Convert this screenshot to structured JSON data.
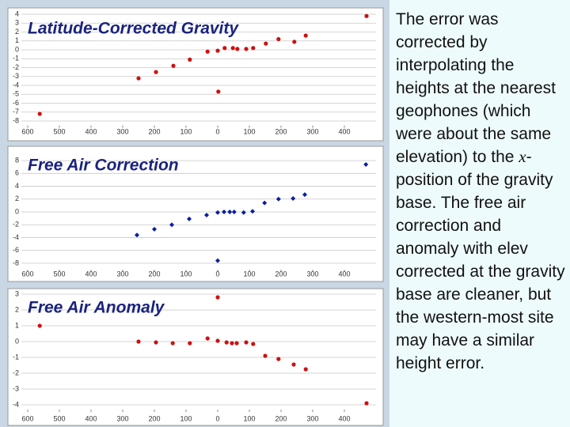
{
  "chart_data": [
    {
      "type": "scatter",
      "title": "Latitude-Corrected Gravity",
      "color": "#cc1111",
      "marker": "circle",
      "grid": true,
      "x": [
        562,
        250,
        195,
        140,
        88,
        32,
        0,
        -2,
        -22,
        -48,
        -62,
        -90,
        -112,
        -152,
        -192,
        -242,
        -278,
        -470
      ],
      "values": [
        -7.2,
        -3.2,
        -2.5,
        -1.8,
        -1.1,
        -0.2,
        -0.1,
        -4.7,
        0.2,
        0.2,
        0.1,
        0.1,
        0.2,
        0.7,
        1.2,
        0.9,
        1.6,
        3.8
      ],
      "xlim": [
        650,
        -500
      ],
      "ylim": [
        -8.5,
        4.5
      ],
      "xticks": [
        600,
        500,
        400,
        300,
        200,
        100,
        0,
        {
          "value": -100,
          "label": "100"
        },
        {
          "value": -200,
          "label": "200"
        },
        {
          "value": -300,
          "label": "300"
        },
        {
          "value": -400,
          "label": "400"
        }
      ],
      "yticks": [
        4,
        3,
        2,
        1,
        0,
        -1,
        -2,
        -3,
        -4,
        -5,
        -6,
        -7,
        -8
      ]
    },
    {
      "type": "scatter",
      "title": "Free Air Correction",
      "color": "#0a1fa0",
      "marker": "diamond",
      "grid": true,
      "x": [
        255,
        200,
        145,
        90,
        35,
        0,
        -20,
        -38,
        -52,
        -82,
        -110,
        -148,
        -192,
        -238,
        -275,
        0,
        -468
      ],
      "values": [
        -3.6,
        -2.7,
        -2.0,
        -1.1,
        -0.5,
        -0.1,
        0,
        0,
        0,
        -0.1,
        0.1,
        1.4,
        2.0,
        2.1,
        2.7,
        -7.6,
        7.4
      ],
      "xlim": [
        650,
        -500
      ],
      "ylim": [
        -9,
        9
      ],
      "xticks": [
        600,
        500,
        400,
        300,
        200,
        100,
        0,
        {
          "value": -100,
          "label": "100"
        },
        {
          "value": -200,
          "label": "200"
        },
        {
          "value": -300,
          "label": "300"
        },
        {
          "value": -400,
          "label": "400"
        }
      ],
      "yticks": [
        8,
        6,
        4,
        2,
        0,
        -2,
        -4,
        -6,
        -8
      ]
    },
    {
      "type": "scatter",
      "title": "Free Air Anomaly",
      "color": "#cc1111",
      "marker": "circle",
      "grid": true,
      "x": [
        562,
        250,
        195,
        142,
        88,
        32,
        0,
        0,
        -28,
        -45,
        -60,
        -90,
        -112,
        -150,
        -192,
        -240,
        -278,
        -470
      ],
      "values": [
        1.0,
        0.0,
        -0.05,
        -0.1,
        -0.1,
        0.2,
        2.8,
        0.05,
        -0.05,
        -0.1,
        -0.1,
        -0.05,
        -0.15,
        -0.9,
        -1.1,
        -1.45,
        -1.75,
        -3.9
      ],
      "xlim": [
        650,
        -500
      ],
      "ylim": [
        -4.3,
        3.5
      ],
      "xticks": [
        600,
        500,
        400,
        300,
        200,
        100,
        0,
        {
          "value": -100,
          "label": "100"
        },
        {
          "value": -200,
          "label": "200"
        },
        {
          "value": -300,
          "label": "300"
        },
        {
          "value": -400,
          "label": "400"
        }
      ],
      "yticks": [
        3,
        2,
        1,
        0,
        -1,
        -2,
        -3,
        -4
      ]
    }
  ],
  "body_text": {
    "before": "The error was corrected by interpolating the heights at the nearest geophones (which were about the same elevation) to the ",
    "variable": "x",
    "after": "-position of the gravity base. The free air correction and anomaly with elev corrected at the gravity base are cleaner, but the western-most site may have a similar height error."
  }
}
